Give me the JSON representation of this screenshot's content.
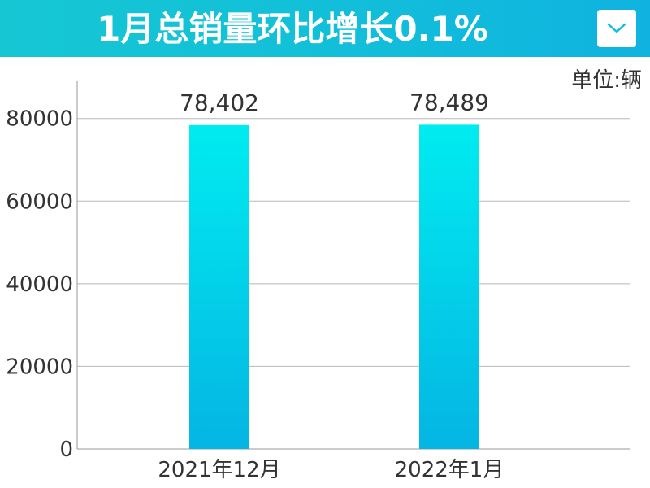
{
  "header": {
    "title": "1月总销量环比增长0.1%",
    "dropdown_icon": "chevron-down-icon",
    "background_color": "#13c2d8"
  },
  "chart_data": {
    "type": "bar",
    "unit_label": "单位:辆",
    "categories": [
      "2021年12月",
      "2022年1月"
    ],
    "values": [
      78402,
      78489
    ],
    "data_labels": [
      "78,402",
      "78,489"
    ],
    "y_ticks": [
      "0",
      "20000",
      "40000",
      "60000",
      "80000"
    ],
    "ylim": [
      0,
      89000
    ],
    "grid": true,
    "bar_color_top": "#00ecf0",
    "bar_color_bottom": "#05b5e3"
  }
}
